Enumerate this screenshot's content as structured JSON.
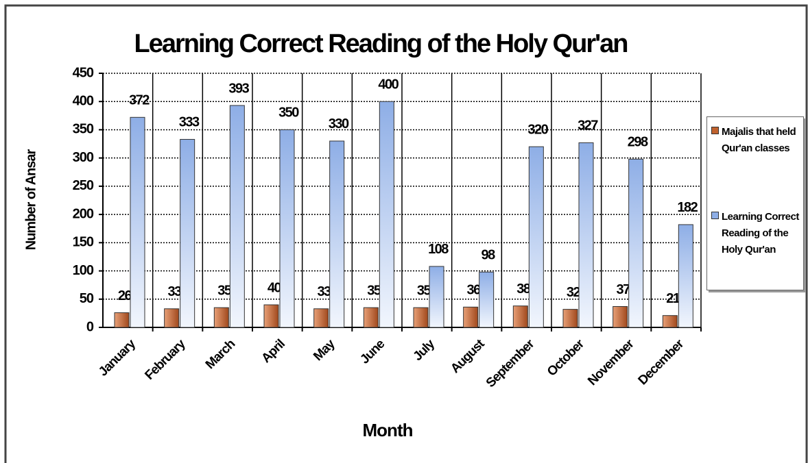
{
  "chart_data": {
    "type": "bar",
    "title": "Learning Correct Reading of the Holy Qur'an",
    "xlabel": "Month",
    "ylabel": "Number of Ansar",
    "categories": [
      "January",
      "February",
      "March",
      "April",
      "May",
      "June",
      "July",
      "August",
      "September",
      "October",
      "November",
      "December"
    ],
    "series": [
      {
        "name": "Majalis that held Qur'an classes",
        "color": "#c0622e",
        "values": [
          26,
          33,
          35,
          40,
          33,
          35,
          35,
          36,
          38,
          32,
          37,
          21
        ]
      },
      {
        "name": "Learning Correct Reading of the Holy Qur'an",
        "color": "#8eaee6",
        "values": [
          372,
          333,
          393,
          350,
          330,
          400,
          108,
          98,
          320,
          327,
          298,
          182
        ]
      }
    ],
    "ylim": [
      0,
      450
    ],
    "yticks": [
      0,
      50,
      100,
      150,
      200,
      250,
      300,
      350,
      400,
      450
    ],
    "grid": true,
    "legend": "right"
  }
}
